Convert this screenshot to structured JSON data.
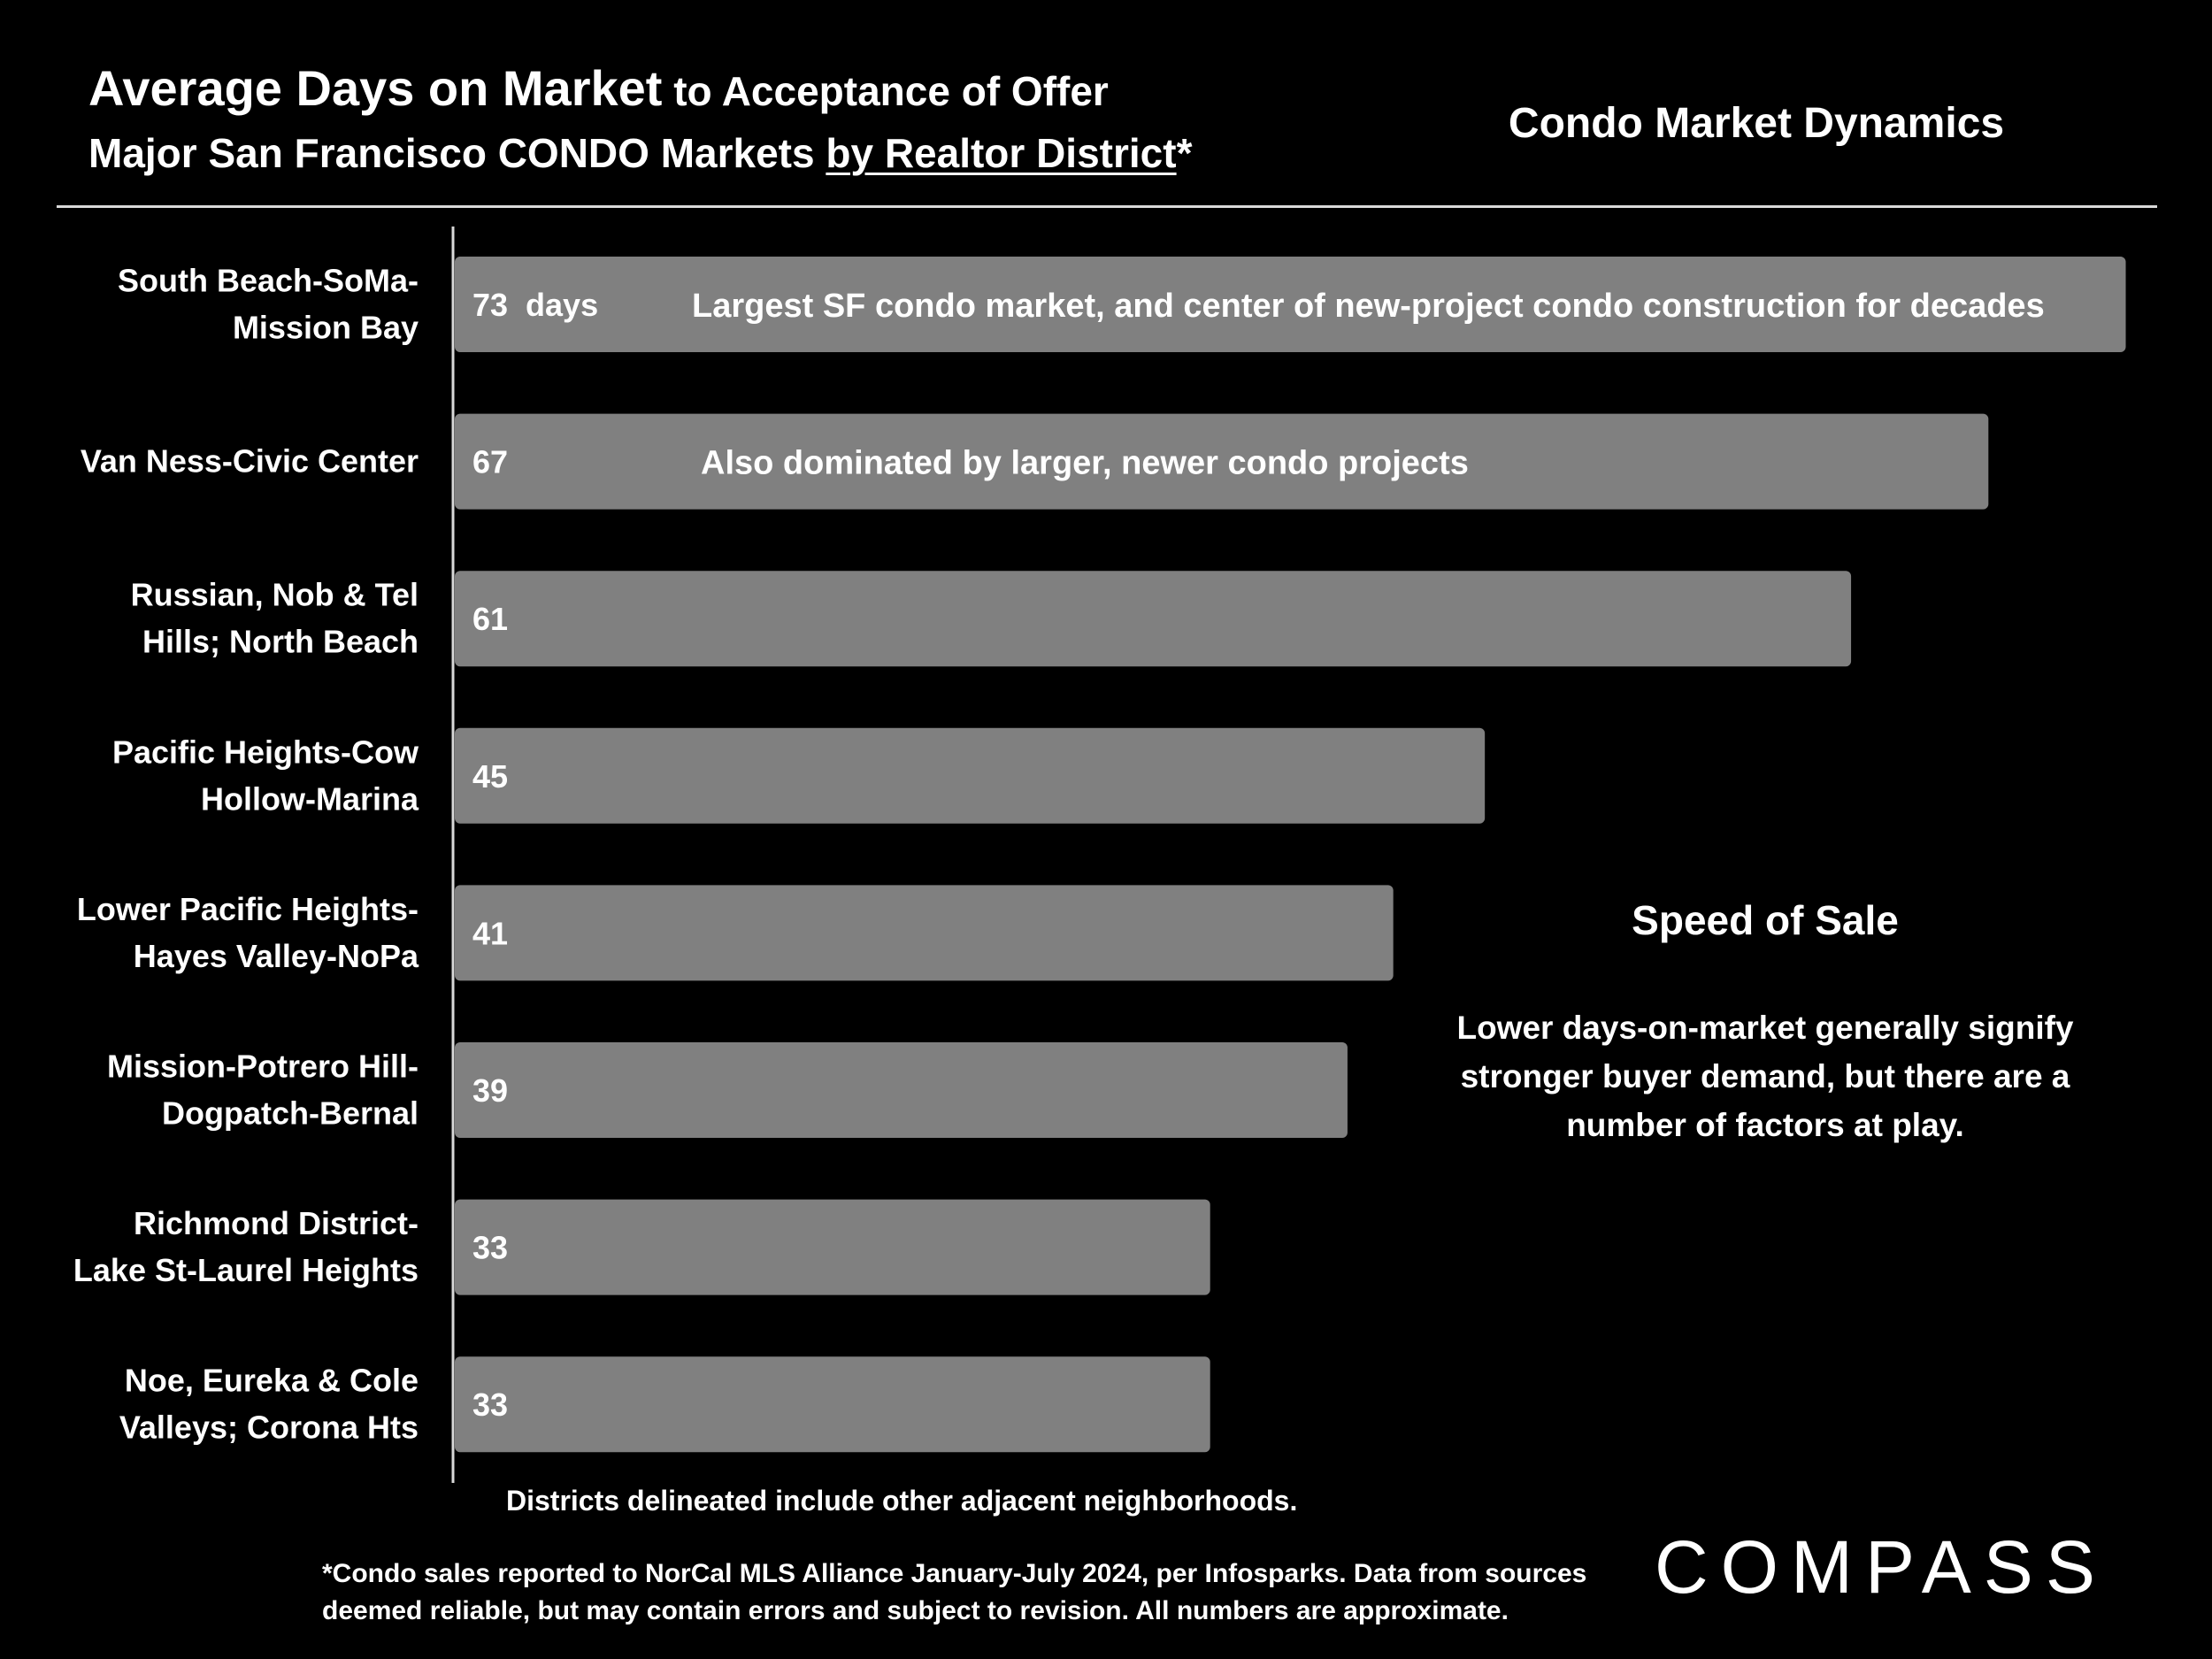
{
  "header": {
    "title_main": "Average Days on Market",
    "title_rest": " to Acceptance of Offer",
    "subtitle_plain": "Major San Francisco CONDO Markets ",
    "subtitle_underlined": "by Realtor District",
    "subtitle_suffix": "*",
    "section_title": "Condo Market Dynamics"
  },
  "chart_data": {
    "type": "bar",
    "orientation": "horizontal",
    "title": "Average Days on Market to Acceptance of Offer",
    "categories": [
      [
        "South Beach-SoMa-",
        "Mission Bay"
      ],
      [
        "Van Ness-Civic Center"
      ],
      [
        "Russian, Nob & Tel",
        "Hills; North Beach"
      ],
      [
        "Pacific Heights-Cow",
        "Hollow-Marina"
      ],
      [
        "Lower Pacific Heights-",
        "Hayes Valley-NoPa"
      ],
      [
        "Mission-Potrero Hill-",
        "Dogpatch-Bernal"
      ],
      [
        "Richmond District-",
        "Lake St-Laurel Heights"
      ],
      [
        "Noe, Eureka & Cole",
        "Valleys; Corona Hts"
      ]
    ],
    "values": [
      73,
      67,
      61,
      45,
      41,
      39,
      33,
      33
    ],
    "value_labels": [
      "73  days",
      "67",
      "61",
      "45",
      "41",
      "39",
      "33",
      "33"
    ],
    "annotations": [
      "Largest SF condo market, and center of new-project condo construction for decades",
      "Also dominated by larger, newer condo projects",
      "",
      "",
      "",
      "",
      "",
      ""
    ],
    "bar_color": "#808080",
    "grid": false
  },
  "sidebar": {
    "speed_title": "Speed of Sale",
    "speed_body": "Lower days-on-market generally signify stronger buyer demand, but there are a number of factors at play."
  },
  "footer": {
    "districts_note": "Districts delineated include other adjacent neighborhoods.",
    "footnote": "*Condo sales reported to NorCal MLS Alliance January-July 2024, per Infosparks. Data from sources deemed reliable, but may contain errors and subject to revision. All numbers are approximate.",
    "logo_text": "COMPASS"
  }
}
